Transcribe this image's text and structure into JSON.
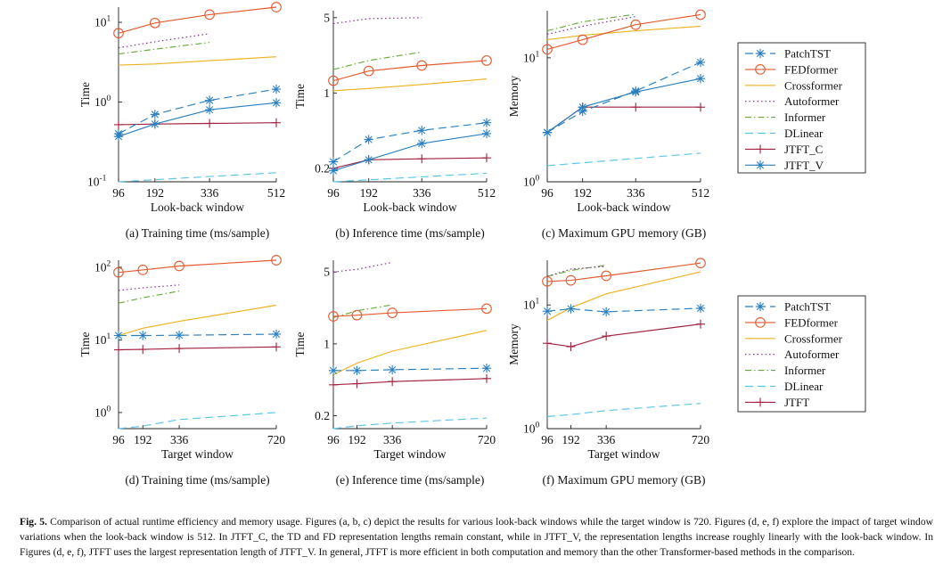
{
  "figure": {
    "caption_label": "Fig. 5.",
    "caption_text": "Comparison of actual runtime efficiency and memory usage. Figures (a, b, c) depict the results for various look-back windows while the target window is 720. Figures (d, e, f) explore the impact of target window variations when the look-back window is 512. In JTFT_C, the TD and FD representation lengths remain constant, while in JTFT_V, the representation lengths increase roughly linearly with the look-back window. In Figures (d, e, f), JTFT uses the largest representation length of JTFT_V. In general, JTFT is more efficient in both computation and memory than the other Transformer-based methods in the comparison."
  },
  "series_styles": {
    "PatchTST": {
      "color": "#2a7fc0",
      "dash": "9,5",
      "marker": "star"
    },
    "FEDformer": {
      "color": "#e25a2e",
      "dash": "",
      "marker": "circle"
    },
    "Crossformer": {
      "color": "#eeb21e",
      "dash": "",
      "marker": ""
    },
    "Autoformer": {
      "color": "#7d2c8e",
      "dash": "1.5,3",
      "marker": ""
    },
    "Informer": {
      "color": "#6aaa3c",
      "dash": "7,3,1.5,3",
      "marker": ""
    },
    "DLinear": {
      "color": "#5cc3e8",
      "dash": "9,5",
      "marker": ""
    },
    "JTFT_C": {
      "color": "#a3213c",
      "dash": "",
      "marker": "plus"
    },
    "JTFT_V": {
      "color": "#2a7fc0",
      "dash": "",
      "marker": "star"
    },
    "JTFT": {
      "color": "#a3213c",
      "dash": "",
      "marker": "plus"
    }
  },
  "legends": [
    {
      "entries": [
        "PatchTST",
        "FEDformer",
        "Crossformer",
        "Autoformer",
        "Informer",
        "DLinear",
        "JTFT_C",
        "JTFT_V"
      ]
    },
    {
      "entries": [
        "PatchTST",
        "FEDformer",
        "Crossformer",
        "Autoformer",
        "Informer",
        "DLinear",
        "JTFT"
      ]
    }
  ],
  "chart_data": [
    {
      "type": "line",
      "yscale": "log",
      "caption": "(a) Training time (ms/sample)",
      "xlabel": "Look-back window",
      "ylabel": "Time",
      "xlim": [
        96,
        512
      ],
      "ylim": [
        0.1,
        15.5
      ],
      "xticks": [
        "96",
        "192",
        "336",
        "512"
      ],
      "yticks": [
        {
          "v": 0.1,
          "b": "10",
          "e": "-1"
        },
        {
          "v": 1,
          "b": "10",
          "e": "0"
        },
        {
          "v": 10,
          "b": "10",
          "e": "1"
        }
      ],
      "series": [
        {
          "name": "DLinear",
          "x": [
            96,
            512
          ],
          "y": [
            0.1,
            0.13
          ]
        },
        {
          "name": "Crossformer",
          "x": [
            96,
            192,
            336,
            512
          ],
          "y": [
            2.9,
            3.0,
            3.3,
            3.7
          ]
        },
        {
          "name": "Informer",
          "x": [
            96,
            192,
            336
          ],
          "y": [
            4.0,
            4.6,
            5.6
          ]
        },
        {
          "name": "Autoformer",
          "x": [
            96,
            192,
            336
          ],
          "y": [
            4.8,
            5.7,
            7.2
          ]
        },
        {
          "name": "FEDformer",
          "x": [
            96,
            192,
            336,
            512
          ],
          "y": [
            7.3,
            9.8,
            12.5,
            15.5
          ]
        },
        {
          "name": "JTFT_C",
          "x": [
            96,
            192,
            336,
            512
          ],
          "y": [
            0.52,
            0.53,
            0.54,
            0.55
          ]
        },
        {
          "name": "JTFT_V",
          "x": [
            96,
            192,
            336,
            512
          ],
          "y": [
            0.37,
            0.53,
            0.8,
            0.98
          ]
        },
        {
          "name": "PatchTST",
          "x": [
            96,
            192,
            336,
            512
          ],
          "y": [
            0.4,
            0.7,
            1.05,
            1.45
          ]
        }
      ]
    },
    {
      "type": "line",
      "yscale": "log",
      "caption": "(b) Inference time (ms/sample)",
      "xlabel": "Look-back window",
      "ylabel": "Time",
      "xlim": [
        96,
        512
      ],
      "ylim": [
        0.15,
        5.8
      ],
      "xticks": [
        "96",
        "192",
        "336",
        "512"
      ],
      "yticks": [
        {
          "v": 0.2,
          "t": "0.2"
        },
        {
          "v": 1,
          "t": "1"
        },
        {
          "v": 5,
          "t": "5"
        }
      ],
      "series": [
        {
          "name": "DLinear",
          "x": [
            96,
            512
          ],
          "y": [
            0.15,
            0.18
          ]
        },
        {
          "name": "Crossformer",
          "x": [
            96,
            192,
            336,
            512
          ],
          "y": [
            1.05,
            1.1,
            1.2,
            1.35
          ]
        },
        {
          "name": "Informer",
          "x": [
            96,
            192,
            336
          ],
          "y": [
            1.65,
            2.0,
            2.4
          ]
        },
        {
          "name": "Autoformer",
          "x": [
            96,
            192,
            336
          ],
          "y": [
            4.4,
            4.9,
            5.0
          ]
        },
        {
          "name": "FEDformer",
          "x": [
            96,
            192,
            336,
            512
          ],
          "y": [
            1.3,
            1.6,
            1.8,
            2.0
          ]
        },
        {
          "name": "JTFT_C",
          "x": [
            96,
            192,
            336,
            512
          ],
          "y": [
            0.2,
            0.24,
            0.245,
            0.25
          ]
        },
        {
          "name": "JTFT_V",
          "x": [
            96,
            192,
            336,
            512
          ],
          "y": [
            0.19,
            0.24,
            0.34,
            0.42
          ]
        },
        {
          "name": "PatchTST",
          "x": [
            96,
            192,
            336,
            512
          ],
          "y": [
            0.23,
            0.37,
            0.45,
            0.53
          ]
        }
      ]
    },
    {
      "type": "line",
      "yscale": "log",
      "caption": "(c) Maximum GPU memory (GB)",
      "xlabel": "Look-back window",
      "ylabel": "Memory",
      "xlim": [
        96,
        512
      ],
      "ylim": [
        1,
        24
      ],
      "xticks": [
        "96",
        "192",
        "336",
        "512"
      ],
      "yticks": [
        {
          "v": 1,
          "b": "10",
          "e": "0"
        },
        {
          "v": 10,
          "b": "10",
          "e": "1"
        }
      ],
      "series": [
        {
          "name": "DLinear",
          "x": [
            96,
            512
          ],
          "y": [
            1.35,
            1.7
          ]
        },
        {
          "name": "Crossformer",
          "x": [
            96,
            192,
            336,
            512
          ],
          "y": [
            14,
            15.2,
            16.5,
            18
          ]
        },
        {
          "name": "Informer",
          "x": [
            96,
            192,
            336
          ],
          "y": [
            16.5,
            19.5,
            22.5
          ]
        },
        {
          "name": "Autoformer",
          "x": [
            96,
            192,
            336
          ],
          "y": [
            15.5,
            18,
            21.5
          ]
        },
        {
          "name": "FEDformer",
          "x": [
            96,
            192,
            336,
            512
          ],
          "y": [
            11.7,
            14,
            18.5,
            22.3
          ]
        },
        {
          "name": "JTFT_C",
          "x": [
            96,
            192,
            336,
            512
          ],
          "y": [
            2.5,
            4.0,
            4.0,
            4.0
          ]
        },
        {
          "name": "JTFT_V",
          "x": [
            96,
            192,
            336,
            512
          ],
          "y": [
            2.5,
            4.0,
            5.3,
            6.8
          ]
        },
        {
          "name": "PatchTST",
          "x": [
            96,
            192,
            336,
            512
          ],
          "y": [
            2.5,
            3.7,
            5.4,
            9.2
          ]
        }
      ]
    },
    {
      "type": "line",
      "yscale": "log",
      "caption": "(d) Training time (ms/sample)",
      "xlabel": "Target window",
      "ylabel": "Time",
      "xlim": [
        96,
        720
      ],
      "ylim": [
        0.6,
        125
      ],
      "xticks": [
        "96",
        "192",
        "336",
        "720"
      ],
      "yticks": [
        {
          "v": 1,
          "b": "10",
          "e": "0"
        },
        {
          "v": 10,
          "b": "10",
          "e": "1"
        },
        {
          "v": 100,
          "b": "10",
          "e": "2"
        }
      ],
      "series": [
        {
          "name": "DLinear",
          "x": [
            96,
            192,
            336,
            720
          ],
          "y": [
            0.6,
            0.65,
            0.8,
            1.0
          ]
        },
        {
          "name": "Crossformer",
          "x": [
            96,
            192,
            336,
            720
          ],
          "y": [
            11.5,
            14.5,
            18,
            30
          ]
        },
        {
          "name": "Informer",
          "x": [
            96,
            192,
            336
          ],
          "y": [
            32,
            38,
            47
          ]
        },
        {
          "name": "Autoformer",
          "x": [
            96,
            192,
            336
          ],
          "y": [
            48,
            52,
            57
          ]
        },
        {
          "name": "FEDformer",
          "x": [
            96,
            192,
            336,
            720
          ],
          "y": [
            85,
            92,
            104,
            125
          ]
        },
        {
          "name": "PatchTST",
          "x": [
            96,
            192,
            336,
            720
          ],
          "y": [
            11.5,
            11.5,
            11.6,
            12.0
          ]
        },
        {
          "name": "JTFT",
          "x": [
            96,
            192,
            336,
            720
          ],
          "y": [
            7.3,
            7.4,
            7.6,
            8.0
          ]
        }
      ]
    },
    {
      "type": "line",
      "yscale": "log",
      "caption": "(e) Inference time (ms/sample)",
      "xlabel": "Target window",
      "ylabel": "Time",
      "xlim": [
        96,
        720
      ],
      "ylim": [
        0.15,
        6.5
      ],
      "xticks": [
        "96",
        "192",
        "336",
        "720"
      ],
      "yticks": [
        {
          "v": 0.2,
          "t": "0.2"
        },
        {
          "v": 1,
          "t": "1"
        },
        {
          "v": 5,
          "t": "5"
        }
      ],
      "series": [
        {
          "name": "DLinear",
          "x": [
            96,
            192,
            336,
            720
          ],
          "y": [
            0.15,
            0.16,
            0.17,
            0.19
          ]
        },
        {
          "name": "Crossformer",
          "x": [
            96,
            192,
            336,
            720
          ],
          "y": [
            0.5,
            0.65,
            0.85,
            1.35
          ]
        },
        {
          "name": "Informer",
          "x": [
            96,
            192,
            336
          ],
          "y": [
            1.8,
            2.1,
            2.4
          ]
        },
        {
          "name": "Autoformer",
          "x": [
            96,
            192,
            336
          ],
          "y": [
            5.0,
            5.3,
            6.2
          ]
        },
        {
          "name": "FEDformer",
          "x": [
            96,
            192,
            336,
            720
          ],
          "y": [
            1.85,
            1.9,
            2.0,
            2.2
          ]
        },
        {
          "name": "PatchTST",
          "x": [
            96,
            192,
            336,
            720
          ],
          "y": [
            0.55,
            0.55,
            0.56,
            0.58
          ]
        },
        {
          "name": "JTFT",
          "x": [
            96,
            192,
            336,
            720
          ],
          "y": [
            0.4,
            0.41,
            0.43,
            0.46
          ]
        }
      ]
    },
    {
      "type": "line",
      "yscale": "log",
      "caption": "(f) Maximum GPU memory (GB)",
      "xlabel": "Target window",
      "ylabel": "Memory",
      "xlim": [
        96,
        720
      ],
      "ylim": [
        1,
        23
      ],
      "xticks": [
        "96",
        "192",
        "336",
        "720"
      ],
      "yticks": [
        {
          "v": 1,
          "b": "10",
          "e": "0"
        },
        {
          "v": 10,
          "b": "10",
          "e": "1"
        }
      ],
      "series": [
        {
          "name": "DLinear",
          "x": [
            96,
            192,
            336,
            720
          ],
          "y": [
            1.25,
            1.3,
            1.4,
            1.6
          ]
        },
        {
          "name": "Crossformer",
          "x": [
            96,
            192,
            336,
            720
          ],
          "y": [
            7.5,
            9.5,
            12.3,
            18.5
          ]
        },
        {
          "name": "Informer",
          "x": [
            96,
            192,
            336
          ],
          "y": [
            17,
            19,
            21
          ]
        },
        {
          "name": "Autoformer",
          "x": [
            96,
            192,
            336
          ],
          "y": [
            17,
            19.5,
            20.5
          ]
        },
        {
          "name": "FEDformer",
          "x": [
            96,
            192,
            336,
            720
          ],
          "y": [
            15.5,
            15.8,
            17.2,
            21.8
          ]
        },
        {
          "name": "PatchTST",
          "x": [
            96,
            192,
            336,
            720
          ],
          "y": [
            8.9,
            9.3,
            8.8,
            9.4
          ]
        },
        {
          "name": "JTFT",
          "x": [
            96,
            192,
            336,
            720
          ],
          "y": [
            4.9,
            4.6,
            5.6,
            7.0
          ]
        }
      ]
    }
  ]
}
